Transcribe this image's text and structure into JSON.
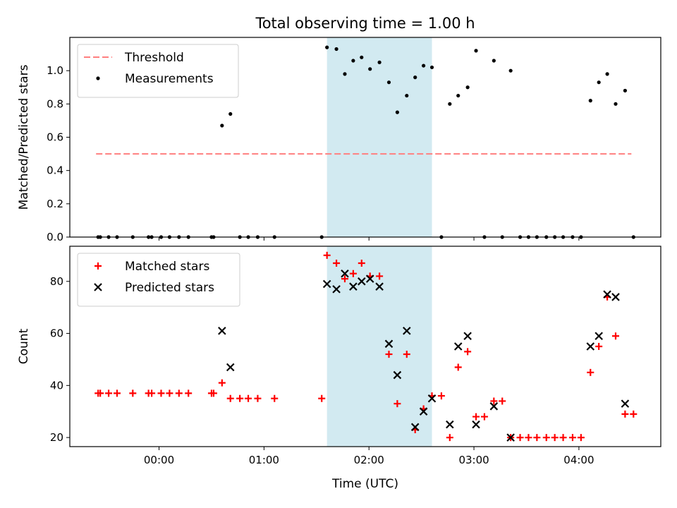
{
  "figure": {
    "title": "Total observing time = 1.00 h",
    "xlabel": "Time (UTC)",
    "xticks": [
      {
        "t": 0,
        "label": "00:00"
      },
      {
        "t": 1,
        "label": "01:00"
      },
      {
        "t": 2,
        "label": "02:00"
      },
      {
        "t": 3,
        "label": "03:00"
      },
      {
        "t": 4,
        "label": "04:00"
      }
    ],
    "shaded_span": {
      "start": 1.6,
      "end": 2.6,
      "color": "#add8e6"
    }
  },
  "chart_data": [
    {
      "type": "scatter",
      "ylabel": "Matched/Predicted stars",
      "xlim": [
        -0.85,
        4.78
      ],
      "ylim": [
        0,
        1.2
      ],
      "yticks": [
        0.0,
        0.2,
        0.4,
        0.6,
        0.8,
        1.0
      ],
      "ytick_labels": [
        "0.0",
        "0.2",
        "0.4",
        "0.6",
        "0.8",
        "1.0"
      ],
      "legend": "top-left",
      "threshold": {
        "name": "Threshold",
        "y": 0.5,
        "x_range": [
          -0.6,
          4.5
        ],
        "color": "#ff7f7f",
        "style": "dashed"
      },
      "series": [
        {
          "name": "Measurements",
          "color": "#000000",
          "marker": "dot",
          "points": [
            [
              -0.58,
              0
            ],
            [
              -0.56,
              0
            ],
            [
              -0.48,
              0
            ],
            [
              -0.4,
              0
            ],
            [
              -0.25,
              0
            ],
            [
              -0.1,
              0
            ],
            [
              -0.07,
              0
            ],
            [
              0.02,
              0
            ],
            [
              0.1,
              0
            ],
            [
              0.19,
              0
            ],
            [
              0.28,
              0
            ],
            [
              0.5,
              0
            ],
            [
              0.52,
              0
            ],
            [
              0.6,
              0.67
            ],
            [
              0.68,
              0.74
            ],
            [
              0.77,
              0
            ],
            [
              0.85,
              0
            ],
            [
              0.94,
              0
            ],
            [
              1.1,
              0
            ],
            [
              1.55,
              0
            ],
            [
              1.6,
              1.14
            ],
            [
              1.69,
              1.13
            ],
            [
              1.77,
              0.98
            ],
            [
              1.85,
              1.06
            ],
            [
              1.93,
              1.08
            ],
            [
              2.01,
              1.01
            ],
            [
              2.1,
              1.05
            ],
            [
              2.19,
              0.93
            ],
            [
              2.27,
              0.75
            ],
            [
              2.36,
              0.85
            ],
            [
              2.44,
              0.96
            ],
            [
              2.52,
              1.03
            ],
            [
              2.6,
              1.02
            ],
            [
              2.69,
              0
            ],
            [
              2.77,
              0.8
            ],
            [
              2.85,
              0.85
            ],
            [
              2.94,
              0.9
            ],
            [
              3.02,
              1.12
            ],
            [
              3.1,
              0
            ],
            [
              3.19,
              1.06
            ],
            [
              3.27,
              0
            ],
            [
              3.35,
              1.0
            ],
            [
              3.44,
              0
            ],
            [
              3.52,
              0
            ],
            [
              3.6,
              0
            ],
            [
              3.69,
              0
            ],
            [
              3.77,
              0
            ],
            [
              3.85,
              0
            ],
            [
              3.94,
              0
            ],
            [
              4.02,
              0
            ],
            [
              4.11,
              0.82
            ],
            [
              4.19,
              0.93
            ],
            [
              4.27,
              0.98
            ],
            [
              4.35,
              0.8
            ],
            [
              4.44,
              0.88
            ],
            [
              4.52,
              0
            ]
          ]
        }
      ]
    },
    {
      "type": "scatter",
      "ylabel": "Count",
      "xlim": [
        -0.85,
        4.78
      ],
      "ylim": [
        16.5,
        93.5
      ],
      "yticks": [
        20,
        40,
        60,
        80
      ],
      "ytick_labels": [
        "20",
        "40",
        "60",
        "80"
      ],
      "legend": "top-left",
      "series": [
        {
          "name": "Matched stars",
          "color": "#ff0000",
          "marker": "plus",
          "points": [
            [
              -0.58,
              37
            ],
            [
              -0.56,
              37
            ],
            [
              -0.48,
              37
            ],
            [
              -0.4,
              37
            ],
            [
              -0.25,
              37
            ],
            [
              -0.1,
              37
            ],
            [
              -0.07,
              37
            ],
            [
              0.02,
              37
            ],
            [
              0.1,
              37
            ],
            [
              0.19,
              37
            ],
            [
              0.28,
              37
            ],
            [
              0.5,
              37
            ],
            [
              0.52,
              37
            ],
            [
              0.6,
              41
            ],
            [
              0.68,
              35
            ],
            [
              0.77,
              35
            ],
            [
              0.85,
              35
            ],
            [
              0.94,
              35
            ],
            [
              1.1,
              35
            ],
            [
              1.55,
              35
            ],
            [
              1.6,
              90
            ],
            [
              1.69,
              87
            ],
            [
              1.77,
              81
            ],
            [
              1.85,
              83
            ],
            [
              1.93,
              87
            ],
            [
              2.01,
              82
            ],
            [
              2.1,
              82
            ],
            [
              2.19,
              52
            ],
            [
              2.27,
              33
            ],
            [
              2.36,
              52
            ],
            [
              2.44,
              23
            ],
            [
              2.52,
              31
            ],
            [
              2.6,
              36
            ],
            [
              2.69,
              36
            ],
            [
              2.77,
              20
            ],
            [
              2.85,
              47
            ],
            [
              2.94,
              53
            ],
            [
              3.02,
              28
            ],
            [
              3.1,
              28
            ],
            [
              3.19,
              34
            ],
            [
              3.27,
              34
            ],
            [
              3.35,
              20
            ],
            [
              3.44,
              20
            ],
            [
              3.52,
              20
            ],
            [
              3.6,
              20
            ],
            [
              3.69,
              20
            ],
            [
              3.77,
              20
            ],
            [
              3.85,
              20
            ],
            [
              3.94,
              20
            ],
            [
              4.02,
              20
            ],
            [
              4.11,
              45
            ],
            [
              4.19,
              55
            ],
            [
              4.27,
              74
            ],
            [
              4.35,
              59
            ],
            [
              4.44,
              29
            ],
            [
              4.52,
              29
            ]
          ]
        },
        {
          "name": "Predicted stars",
          "color": "#000000",
          "marker": "x",
          "points": [
            [
              0.6,
              61
            ],
            [
              0.68,
              47
            ],
            [
              1.6,
              79
            ],
            [
              1.69,
              77
            ],
            [
              1.77,
              83
            ],
            [
              1.85,
              78
            ],
            [
              1.93,
              80
            ],
            [
              2.01,
              81
            ],
            [
              2.1,
              78
            ],
            [
              2.19,
              56
            ],
            [
              2.27,
              44
            ],
            [
              2.36,
              61
            ],
            [
              2.44,
              24
            ],
            [
              2.52,
              30
            ],
            [
              2.6,
              35
            ],
            [
              2.77,
              25
            ],
            [
              2.85,
              55
            ],
            [
              2.94,
              59
            ],
            [
              3.02,
              25
            ],
            [
              3.19,
              32
            ],
            [
              3.35,
              20
            ],
            [
              4.11,
              55
            ],
            [
              4.19,
              59
            ],
            [
              4.27,
              75
            ],
            [
              4.35,
              74
            ],
            [
              4.44,
              33
            ]
          ]
        }
      ]
    }
  ]
}
